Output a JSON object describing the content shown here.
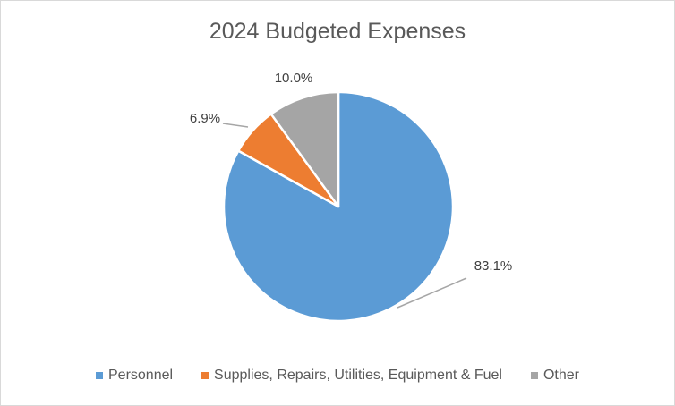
{
  "chart_data": {
    "type": "pie",
    "title": "2024 Budgeted Expenses",
    "categories": [
      "Personnel",
      "Supplies, Repairs, Utilities, Equipment & Fuel",
      "Other"
    ],
    "values": [
      83.1,
      6.9,
      10.0
    ],
    "labels": [
      "83.1%",
      "6.9%",
      "10.0%"
    ],
    "colors": [
      "#5b9bd5",
      "#ed7d31",
      "#a5a5a5"
    ],
    "start_angle_deg": 0,
    "direction": "clockwise",
    "legend_position": "bottom"
  }
}
